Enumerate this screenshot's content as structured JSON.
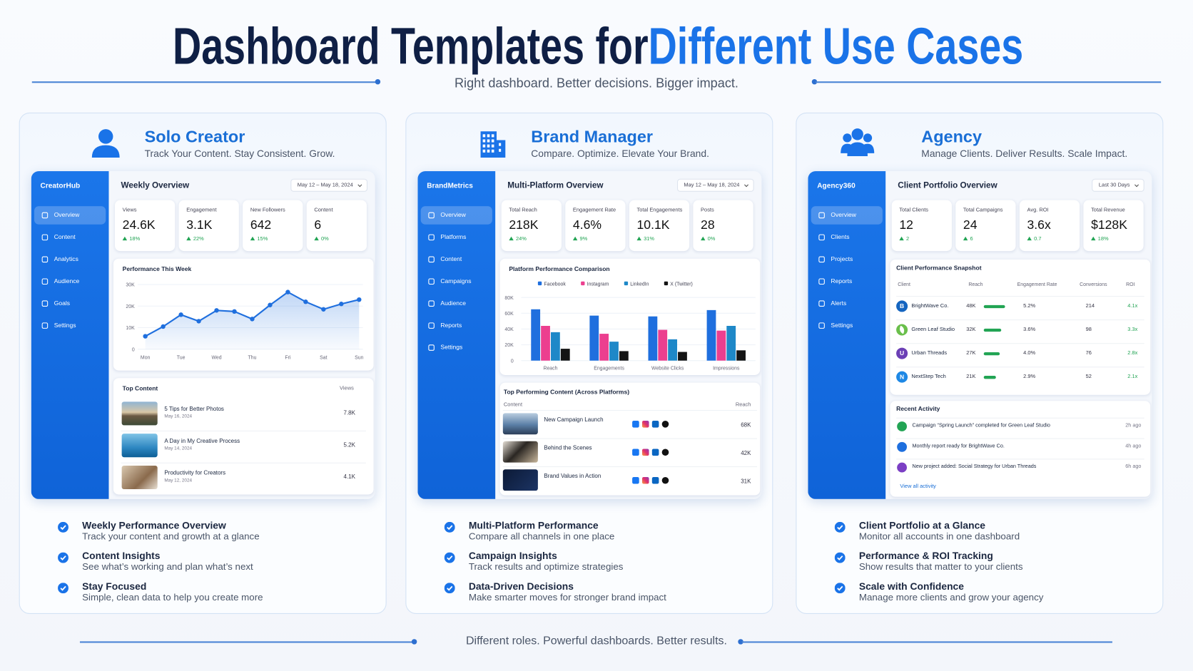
{
  "header": {
    "title_dark": "Dashboard Templates for",
    "title_blue": "Different Use Cases",
    "subtitle": "Right dashboard. Better decisions. Bigger impact."
  },
  "panels": [
    {
      "title": "Solo Creator",
      "tagline": "Track Your Content. Stay Consistent. Grow.",
      "app": {
        "brand": "CreatorHub",
        "nav": [
          "Overview",
          "Content",
          "Analytics",
          "Audience",
          "Goals",
          "Settings"
        ],
        "heading": "Weekly Overview",
        "date_range": "May 12 – May 18, 2024",
        "kpis": [
          {
            "label": "Views",
            "value": "24.6K",
            "change": "18%"
          },
          {
            "label": "Engagement",
            "value": "3.1K",
            "change": "22%"
          },
          {
            "label": "New Followers",
            "value": "642",
            "change": "15%"
          },
          {
            "label": "Content",
            "value": "6",
            "change": "0%"
          }
        ],
        "chart": {
          "type": "line",
          "title": "Performance This Week",
          "color": "#1f6fde",
          "x": [
            0,
            0.5,
            1,
            1.5,
            2,
            2.5,
            3,
            3.5,
            4,
            4.5,
            5,
            5.5,
            6
          ],
          "values": [
            6000,
            10500,
            16000,
            13000,
            18000,
            17500,
            14000,
            20500,
            26500,
            22000,
            18500,
            21000,
            23000
          ],
          "xlim": [
            0,
            6
          ],
          "xticks": [
            {
              "value": 0,
              "label": "Mon"
            },
            {
              "value": 1,
              "label": "Tue"
            },
            {
              "value": 2,
              "label": "Wed"
            },
            {
              "value": 3,
              "label": "Thu"
            },
            {
              "value": 4,
              "label": "Fri"
            },
            {
              "value": 5,
              "label": "Sat"
            },
            {
              "value": 6,
              "label": "Sun"
            }
          ],
          "ylim": [
            0,
            30000
          ],
          "yticks": [
            0,
            {
              "value": 10000,
              "label": "10K"
            },
            {
              "value": 20000,
              "label": "20K"
            },
            {
              "value": 30000,
              "label": "30K"
            }
          ],
          "grid": true
        },
        "top_content": {
          "title": "Top Content",
          "column": "Views",
          "rows": [
            {
              "title": "5 Tips for Better Photos",
              "date": "May 16, 2024",
              "views": "7.8K"
            },
            {
              "title": "A Day in My Creative Process",
              "date": "May 14, 2024",
              "views": "5.2K"
            },
            {
              "title": "Productivity for Creators",
              "date": "May 12, 2024",
              "views": "4.1K"
            }
          ]
        }
      },
      "features": [
        {
          "title": "Weekly Performance Overview",
          "desc": "Track your content and growth at a glance"
        },
        {
          "title": "Content Insights",
          "desc": "See what’s working and plan what’s next"
        },
        {
          "title": "Stay Focused",
          "desc": "Simple, clean data to help you create more"
        }
      ]
    },
    {
      "title": "Brand Manager",
      "tagline": "Compare. Optimize. Elevate Your Brand.",
      "app": {
        "brand": "BrandMetrics",
        "nav": [
          "Overview",
          "Platforms",
          "Content",
          "Campaigns",
          "Audience",
          "Reports",
          "Settings"
        ],
        "heading": "Multi-Platform Overview",
        "date_range": "May 12 – May 18, 2024",
        "kpis": [
          {
            "label": "Total Reach",
            "value": "218K",
            "change": "24%"
          },
          {
            "label": "Engagement Rate",
            "value": "4.6%",
            "change": "9%"
          },
          {
            "label": "Total Engagements",
            "value": "10.1K",
            "change": "31%"
          },
          {
            "label": "Posts",
            "value": "28",
            "change": "0%"
          }
        ],
        "chart": {
          "type": "bar",
          "title": "Platform Performance Comparison",
          "categories": [
            "Reach",
            "Engagements",
            "Website Clicks",
            "Impressions"
          ],
          "series": [
            {
              "name": "Facebook",
              "color": "#1f6fde",
              "values": [
                65000,
                57000,
                56000,
                64000
              ]
            },
            {
              "name": "Instagram",
              "color": "#ec3f8f",
              "values": [
                44000,
                34000,
                39000,
                38000
              ]
            },
            {
              "name": "LinkedIn",
              "color": "#1e88c8",
              "values": [
                36000,
                24000,
                27000,
                44000
              ]
            },
            {
              "name": "X (Twitter)",
              "color": "#141414",
              "values": [
                15000,
                12000,
                11000,
                13000
              ]
            }
          ],
          "ylim": [
            0,
            80000
          ],
          "yticks": [
            0,
            {
              "value": 20000,
              "label": "20K"
            },
            {
              "value": 40000,
              "label": "40K"
            },
            {
              "value": 60000,
              "label": "60K"
            },
            {
              "value": 80000,
              "label": "80K"
            }
          ],
          "grid": true
        },
        "content_table": {
          "title": "Top Performing Content (Across Platforms)",
          "columns": [
            "Content",
            "Reach"
          ],
          "rows": [
            {
              "title": "New Campaign Launch",
              "reach": "68K"
            },
            {
              "title": "Behind the Scenes",
              "reach": "42K"
            },
            {
              "title": "Brand Values in Action",
              "reach": "31K"
            }
          ]
        }
      },
      "features": [
        {
          "title": "Multi-Platform Performance",
          "desc": "Compare all channels in one place"
        },
        {
          "title": "Campaign Insights",
          "desc": "Track results and optimize strategies"
        },
        {
          "title": "Data-Driven Decisions",
          "desc": "Make smarter moves for stronger brand impact"
        }
      ]
    },
    {
      "title": "Agency",
      "tagline": "Manage Clients. Deliver Results. Scale Impact.",
      "app": {
        "brand": "Agency360",
        "nav": [
          "Overview",
          "Clients",
          "Projects",
          "Reports",
          "Alerts",
          "Settings"
        ],
        "heading": "Client Portfolio Overview",
        "date_range": "Last 30 Days",
        "kpis": [
          {
            "label": "Total Clients",
            "value": "12",
            "change": "2"
          },
          {
            "label": "Total Campaigns",
            "value": "24",
            "change": "6"
          },
          {
            "label": "Avg. ROI",
            "value": "3.6x",
            "change": "0.7"
          },
          {
            "label": "Total Revenue",
            "value": "$128K",
            "change": "18%"
          }
        ],
        "client_table": {
          "title": "Client Performance Snapshot",
          "columns": [
            "Client",
            "Reach",
            "Engagement Rate",
            "Conversions",
            "ROI"
          ],
          "rows": [
            {
              "initial": "B",
              "name": "BrightWave Co.",
              "reach": "48K",
              "engagement": "5.2%",
              "conversions": "214",
              "roi": "4.1x"
            },
            {
              "name": "Green Leaf Studio",
              "reach": "32K",
              "engagement": "3.6%",
              "conversions": "98",
              "roi": "3.3x"
            },
            {
              "initial": "U",
              "name": "Urban Threads",
              "reach": "27K",
              "engagement": "4.0%",
              "conversions": "76",
              "roi": "2.8x"
            },
            {
              "initial": "N",
              "name": "NextStep Tech",
              "reach": "21K",
              "engagement": "2.9%",
              "conversions": "52",
              "roi": "2.1x"
            }
          ]
        },
        "activity": {
          "title": "Recent Activity",
          "items": [
            {
              "text": "Campaign “Spring Launch” completed for Green Leaf Studio",
              "time": "2h ago"
            },
            {
              "text": "Monthly report ready for BrightWave Co.",
              "time": "4h ago"
            },
            {
              "text": "New project added: Social Strategy for Urban Threads",
              "time": "6h ago"
            }
          ],
          "link": "View all activity"
        }
      },
      "features": [
        {
          "title": "Client Portfolio at a Glance",
          "desc": "Monitor all accounts in one dashboard"
        },
        {
          "title": "Performance & ROI Tracking",
          "desc": "Show results that matter to your clients"
        },
        {
          "title": "Scale with Confidence",
          "desc": "Manage more clients and grow your agency"
        }
      ]
    }
  ],
  "footer": "Different roles. Powerful dashboards. Better results."
}
